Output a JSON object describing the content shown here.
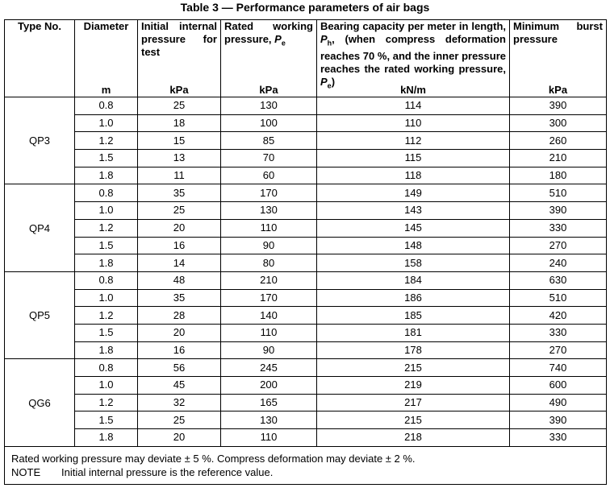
{
  "caption": "Table 3 — Performance parameters of air bags",
  "headers": {
    "type_no": "Type No.",
    "diameter": "Diameter",
    "diameter_unit": "m",
    "initial_pressure": "Initial internal pressure for test",
    "initial_pressure_unit": "kPa",
    "rated_pressure_pre": "Rated working pressure, ",
    "rated_pressure_sym": "P",
    "rated_pressure_sub": "e",
    "rated_pressure_unit": "kPa",
    "bearing_1": "Bearing capacity per meter in length, ",
    "bearing_sym": "P",
    "bearing_sub": "h",
    "bearing_2": ", (when compress deformation reaches 70 %, and the inner pressure reaches the rated working pressure, ",
    "bearing_sym2": "P",
    "bearing_sub2": "e",
    "bearing_3": ")",
    "bearing_unit": "kN/m",
    "burst": "Minimum burst pressure",
    "burst_unit": "kPa"
  },
  "groups": [
    {
      "type": "QP3",
      "rows": [
        [
          "0.8",
          "25",
          "130",
          "114",
          "390"
        ],
        [
          "1.0",
          "18",
          "100",
          "110",
          "300"
        ],
        [
          "1.2",
          "15",
          "85",
          "112",
          "260"
        ],
        [
          "1.5",
          "13",
          "70",
          "115",
          "210"
        ],
        [
          "1.8",
          "11",
          "60",
          "118",
          "180"
        ]
      ]
    },
    {
      "type": "QP4",
      "rows": [
        [
          "0.8",
          "35",
          "170",
          "149",
          "510"
        ],
        [
          "1.0",
          "25",
          "130",
          "143",
          "390"
        ],
        [
          "1.2",
          "20",
          "110",
          "145",
          "330"
        ],
        [
          "1.5",
          "16",
          "90",
          "148",
          "270"
        ],
        [
          "1.8",
          "14",
          "80",
          "158",
          "240"
        ]
      ]
    },
    {
      "type": "QP5",
      "rows": [
        [
          "0.8",
          "48",
          "210",
          "184",
          "630"
        ],
        [
          "1.0",
          "35",
          "170",
          "186",
          "510"
        ],
        [
          "1.2",
          "28",
          "140",
          "185",
          "420"
        ],
        [
          "1.5",
          "20",
          "110",
          "181",
          "330"
        ],
        [
          "1.8",
          "16",
          "90",
          "178",
          "270"
        ]
      ]
    },
    {
      "type": "QG6",
      "rows": [
        [
          "0.8",
          "56",
          "245",
          "215",
          "740"
        ],
        [
          "1.0",
          "45",
          "200",
          "219",
          "600"
        ],
        [
          "1.2",
          "32",
          "165",
          "217",
          "490"
        ],
        [
          "1.5",
          "25",
          "130",
          "215",
          "390"
        ],
        [
          "1.8",
          "20",
          "110",
          "218",
          "330"
        ]
      ]
    }
  ],
  "footnote": "Rated working pressure may deviate ± 5 %. Compress deformation may deviate ± 2 %.",
  "note_label": "NOTE",
  "note_text": "Initial internal pressure is the reference value."
}
